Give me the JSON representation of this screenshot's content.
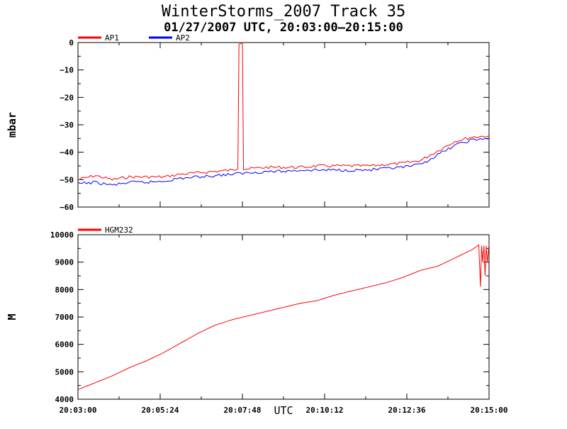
{
  "title": "WinterStorms_2007 Track 35",
  "subtitle": "01/27/2007 UTC, 20:03:00–20:15:00",
  "chart_data": [
    {
      "type": "line",
      "ylabel": "mbar",
      "ylim": [
        -60,
        0
      ],
      "yticks": [
        "0",
        "−10",
        "−20",
        "−30",
        "−40",
        "−50",
        "−60"
      ],
      "ytick_values": [
        0,
        -10,
        -20,
        -30,
        -40,
        -50,
        -60
      ],
      "x_time_range": [
        "20:03:00",
        "20:15:00"
      ],
      "x_time_range_seconds": [
        72180,
        72900
      ],
      "legend": "top-left",
      "series": [
        {
          "name": "AP1",
          "color": "#ff0000",
          "x": [
            "20:03:00",
            "20:03:30",
            "20:04:00",
            "20:04:30",
            "20:05:00",
            "20:05:30",
            "20:06:00",
            "20:06:30",
            "20:07:00",
            "20:07:30",
            "20:07:40",
            "20:07:42",
            "20:07:48",
            "20:07:50",
            "20:08:00",
            "20:08:30",
            "20:09:00",
            "20:09:30",
            "20:10:00",
            "20:10:30",
            "20:11:00",
            "20:11:30",
            "20:12:00",
            "20:12:30",
            "20:13:00",
            "20:13:30",
            "20:14:00",
            "20:14:30",
            "20:15:00"
          ],
          "y": [
            -50,
            -48.5,
            -50,
            -49,
            -49,
            -49,
            -48,
            -47.5,
            -47,
            -46.5,
            -46,
            0,
            0,
            -46,
            -46,
            -45.5,
            -45.5,
            -45.5,
            -45,
            -45,
            -45,
            -45,
            -44.5,
            -44,
            -43,
            -39.5,
            -36,
            -34.5,
            -34
          ]
        },
        {
          "name": "AP2",
          "color": "#0000ff",
          "x": [
            "20:03:00",
            "20:03:30",
            "20:04:00",
            "20:04:30",
            "20:05:00",
            "20:05:30",
            "20:06:00",
            "20:06:30",
            "20:07:00",
            "20:07:30",
            "20:08:00",
            "20:08:30",
            "20:09:00",
            "20:09:30",
            "20:10:00",
            "20:10:30",
            "20:11:00",
            "20:11:30",
            "20:12:00",
            "20:12:30",
            "20:13:00",
            "20:13:30",
            "20:14:00",
            "20:14:30",
            "20:15:00"
          ],
          "y": [
            -51.5,
            -51,
            -52,
            -51,
            -51,
            -50.5,
            -49.5,
            -49,
            -48.5,
            -48,
            -47.5,
            -47,
            -47,
            -46.5,
            -46.5,
            -46.5,
            -46.5,
            -46.5,
            -46,
            -45.5,
            -44.5,
            -41,
            -37.5,
            -35.5,
            -35
          ]
        }
      ]
    },
    {
      "type": "line",
      "xlabel": "UTC",
      "ylabel": "M",
      "ylim": [
        4000,
        10000
      ],
      "yticks": [
        "10000",
        "9000",
        "8000",
        "7000",
        "6000",
        "5000",
        "4000"
      ],
      "ytick_values": [
        10000,
        9000,
        8000,
        7000,
        6000,
        5000,
        4000
      ],
      "xticks": [
        "20:03:00",
        "20:05:24",
        "20:07:48",
        "20:10:12",
        "20:12:36",
        "20:15:00"
      ],
      "legend": "top-left",
      "series": [
        {
          "name": "HGM232",
          "color": "#ff0000",
          "x": [
            "20:03:00",
            "20:03:30",
            "20:04:00",
            "20:04:30",
            "20:05:00",
            "20:05:30",
            "20:06:00",
            "20:06:30",
            "20:07:00",
            "20:07:30",
            "20:08:00",
            "20:08:30",
            "20:09:00",
            "20:09:30",
            "20:10:00",
            "20:10:30",
            "20:11:00",
            "20:11:30",
            "20:12:00",
            "20:12:30",
            "20:13:00",
            "20:13:30",
            "20:14:00",
            "20:14:30",
            "20:14:42",
            "20:14:45",
            "20:14:47",
            "20:14:49",
            "20:14:51",
            "20:14:53",
            "20:14:55",
            "20:14:57",
            "20:15:00"
          ],
          "y": [
            4350,
            4600,
            4850,
            5150,
            5400,
            5700,
            6050,
            6400,
            6700,
            6900,
            7050,
            7200,
            7350,
            7500,
            7600,
            7800,
            7950,
            8100,
            8250,
            8450,
            8700,
            8850,
            9150,
            9450,
            9630,
            8100,
            9600,
            9000,
            9600,
            8500,
            9600,
            9000,
            9650
          ]
        }
      ]
    }
  ]
}
